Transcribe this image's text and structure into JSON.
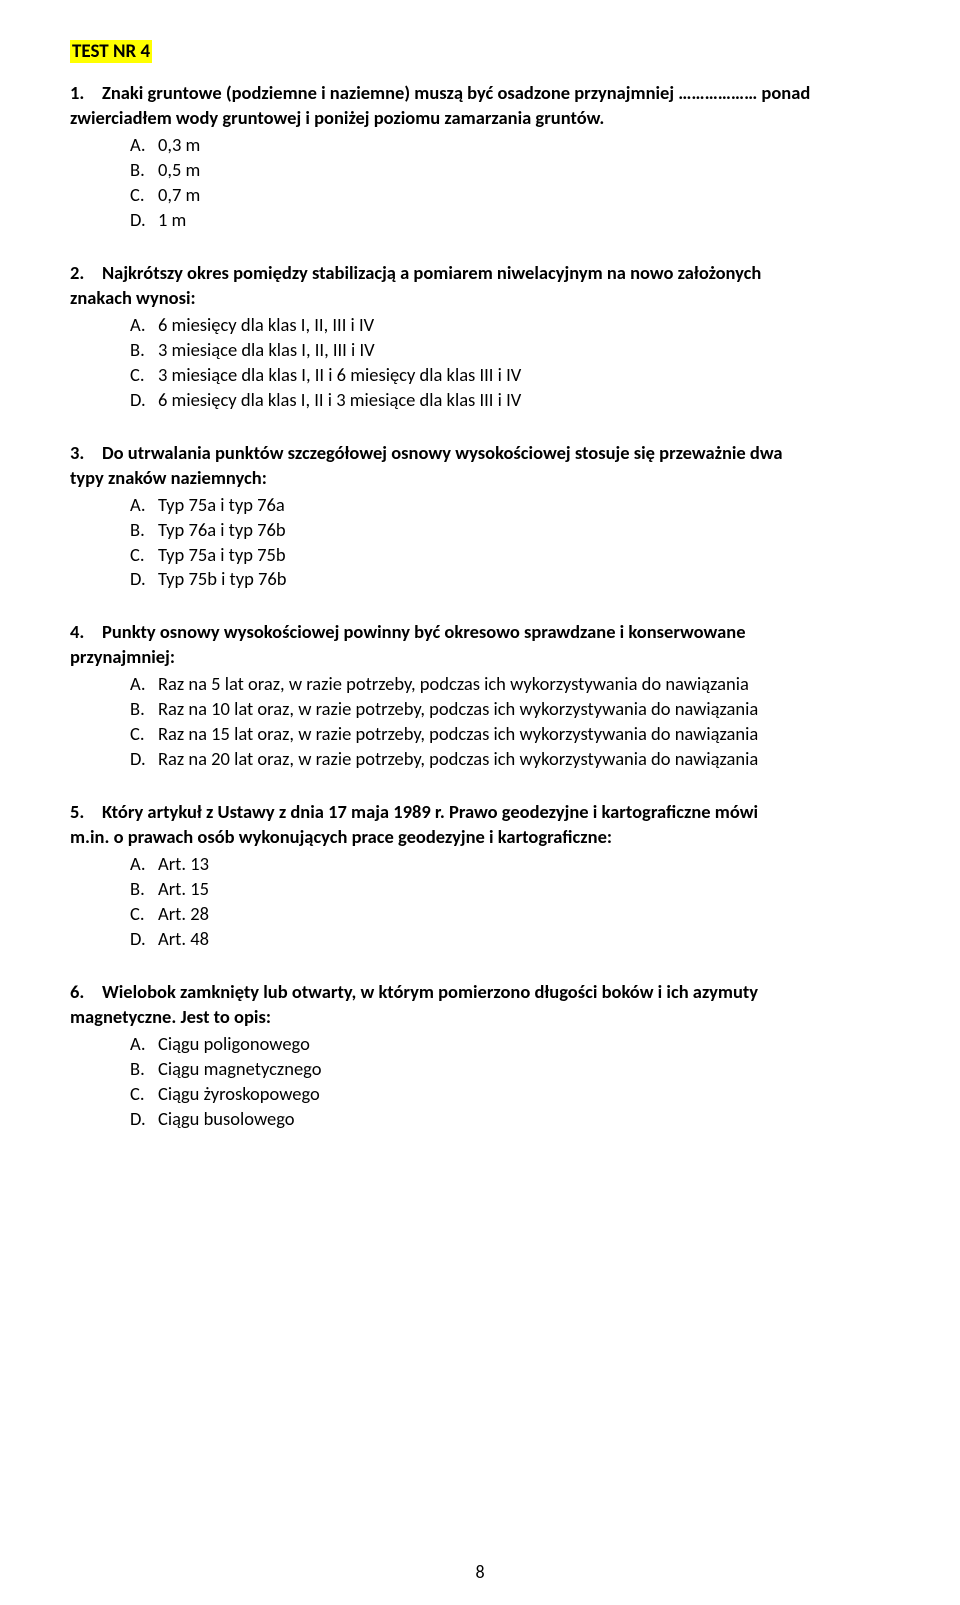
{
  "page": {
    "header": "TEST NR 4",
    "page_number": "8",
    "background_color": "#ffffff",
    "text_color": "#000000",
    "highlight_color": "#ffff00",
    "font_size_pt": 14,
    "font_family": "Calibri"
  },
  "questions": [
    {
      "num": "1.",
      "line1": "Znaki gruntowe (podziemne i naziemne) muszą być osadzone przynajmniej ……………… ponad",
      "line2": "zwierciadłem wody gruntowej i poniżej poziomu zamarzania gruntów.",
      "options": [
        {
          "letter": "A.",
          "text": "0,3 m"
        },
        {
          "letter": "B.",
          "text": "0,5 m"
        },
        {
          "letter": "C.",
          "text": "0,7 m"
        },
        {
          "letter": "D.",
          "text": "1 m"
        }
      ]
    },
    {
      "num": "2.",
      "line1": "Najkrótszy okres pomiędzy stabilizacją a pomiarem niwelacyjnym na nowo założonych",
      "line2": "znakach wynosi:",
      "options": [
        {
          "letter": "A.",
          "text": "6 miesięcy dla klas I, II, III i IV"
        },
        {
          "letter": "B.",
          "text": "3 miesiące dla klas I, II, III i IV"
        },
        {
          "letter": "C.",
          "text": "3 miesiące dla klas I, II i 6 miesięcy dla klas III i IV"
        },
        {
          "letter": "D.",
          "text": "6 miesięcy dla klas I, II i 3 miesiące dla klas III i IV"
        }
      ]
    },
    {
      "num": "3.",
      "line1": "Do utrwalania punktów szczegółowej osnowy wysokościowej stosuje się przeważnie dwa",
      "line2": "typy znaków naziemnych:",
      "options": [
        {
          "letter": "A.",
          "text": "Typ 75a i typ 76a"
        },
        {
          "letter": "B.",
          "text": "Typ 76a i typ 76b"
        },
        {
          "letter": "C.",
          "text": "Typ 75a i typ 75b"
        },
        {
          "letter": "D.",
          "text": "Typ 75b i typ 76b"
        }
      ]
    },
    {
      "num": "4.",
      "line1": "Punkty osnowy wysokościowej powinny być okresowo sprawdzane i konserwowane",
      "line2": "przynajmniej:",
      "options": [
        {
          "letter": "A.",
          "text": "Raz na 5 lat oraz, w razie potrzeby, podczas ich wykorzystywania do nawiązania"
        },
        {
          "letter": "B.",
          "text": "Raz na 10 lat oraz, w razie potrzeby, podczas ich wykorzystywania do nawiązania"
        },
        {
          "letter": "C.",
          "text": "Raz na 15 lat oraz, w razie potrzeby, podczas ich wykorzystywania do nawiązania"
        },
        {
          "letter": "D.",
          "text": "Raz na 20 lat oraz, w razie potrzeby, podczas ich wykorzystywania do nawiązania"
        }
      ]
    },
    {
      "num": "5.",
      "line1": "Który artykuł z Ustawy z dnia 17 maja 1989 r. Prawo geodezyjne i kartograficzne mówi",
      "line2": "m.in.  o prawach osób wykonujących prace geodezyjne i kartograficzne:",
      "options": [
        {
          "letter": "A.",
          "text": "Art. 13"
        },
        {
          "letter": "B.",
          "text": "Art. 15"
        },
        {
          "letter": "C.",
          "text": "Art. 28"
        },
        {
          "letter": "D.",
          "text": " Art. 48"
        }
      ]
    },
    {
      "num": "6.",
      "line1": "Wielobok zamknięty lub otwarty, w którym pomierzono długości boków i ich azymuty",
      "line2": "magnetyczne. Jest to opis:",
      "options": [
        {
          "letter": "A.",
          "text": "Ciągu poligonowego"
        },
        {
          "letter": "B.",
          "text": "Ciągu magnetycznego"
        },
        {
          "letter": "C.",
          "text": "Ciągu żyroskopowego"
        },
        {
          "letter": "D.",
          "text": "Ciągu busolowego"
        }
      ]
    }
  ]
}
